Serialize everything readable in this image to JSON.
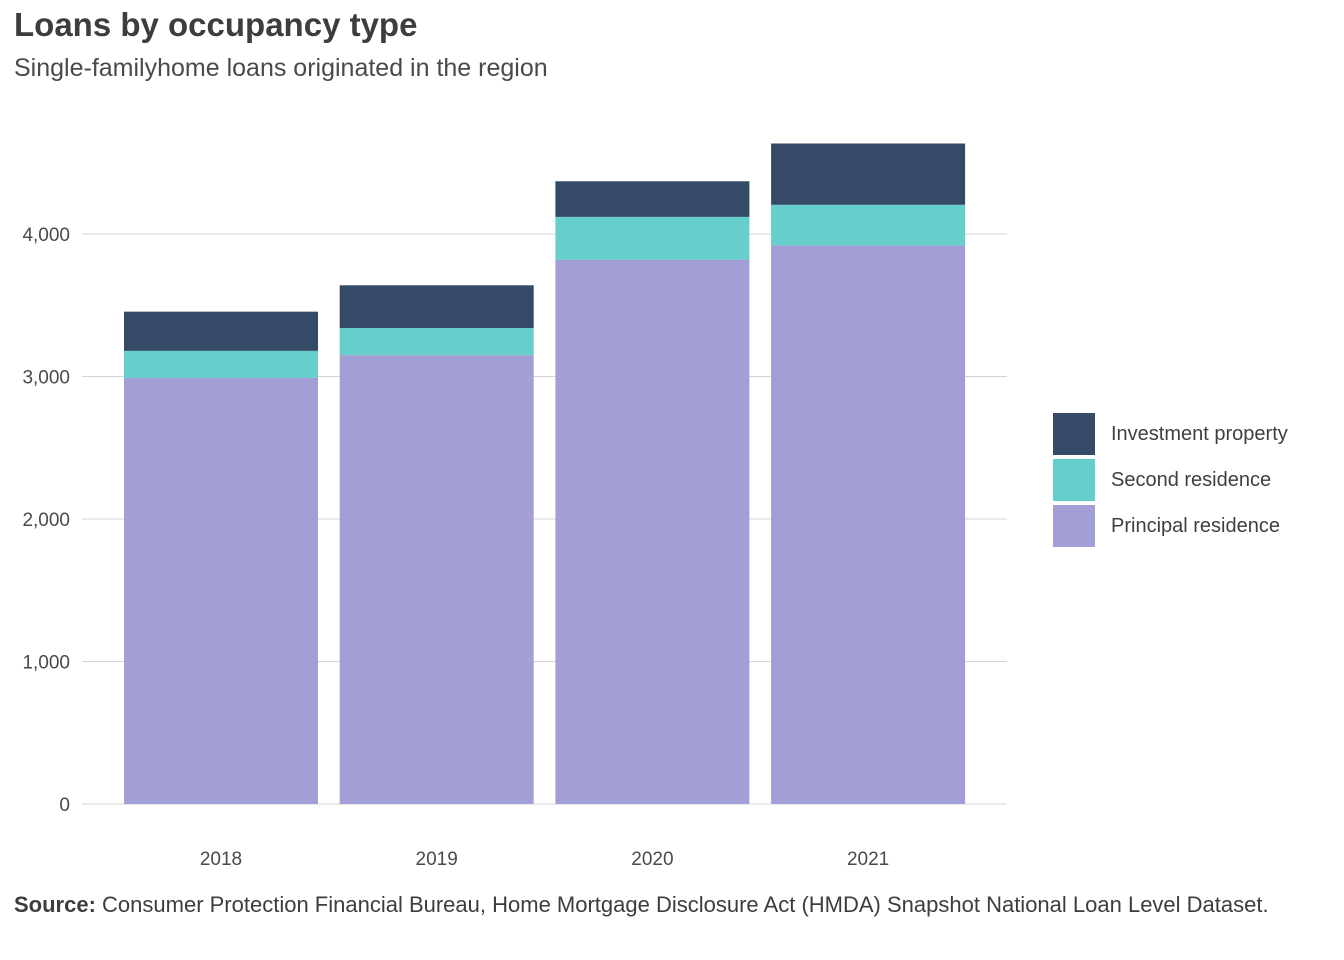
{
  "header": {
    "title": "Loans by occupancy type",
    "subtitle": "Single-familyhome loans originated in the region"
  },
  "colors": {
    "investment": "#344a66",
    "second": "#66cfcc",
    "principal": "#a29ed6",
    "grid": "#d4d4d4"
  },
  "chart_data": {
    "type": "bar",
    "stacked": true,
    "categories": [
      "2018",
      "2019",
      "2020",
      "2021"
    ],
    "series": [
      {
        "name": "Principal residence",
        "values": [
          2990,
          3150,
          3820,
          3920
        ],
        "color": "#a29ed6"
      },
      {
        "name": "Second residence",
        "values": [
          190,
          190,
          300,
          285
        ],
        "color": "#66cfcc"
      },
      {
        "name": "Investment property",
        "values": [
          275,
          300,
          250,
          430
        ],
        "color": "#344a66"
      }
    ],
    "y_ticks": [
      "0",
      "1,000",
      "2,000",
      "3,000",
      "4,000"
    ],
    "y_tick_values": [
      0,
      1000,
      2000,
      3000,
      4000
    ],
    "ylim": [
      0,
      4800
    ],
    "grid": true,
    "legend_position": "right"
  },
  "legend": {
    "items": [
      {
        "label": "Investment property",
        "color": "#344a66"
      },
      {
        "label": "Second residence",
        "color": "#66cfcc"
      },
      {
        "label": "Principal residence",
        "color": "#a29ed6"
      }
    ]
  },
  "source": {
    "label": "Source:",
    "text": " Consumer Protection Financial Bureau, Home Mortgage Disclosure Act (HMDA) Snapshot National Loan Level Dataset."
  }
}
